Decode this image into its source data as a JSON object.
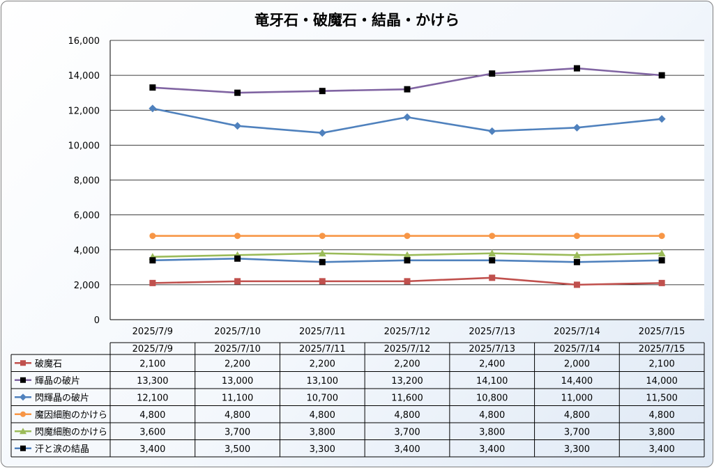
{
  "chart_data": {
    "type": "line",
    "title": "竜牙石・破魔石・結晶・かけら",
    "categories": [
      "2025/7/9",
      "2025/7/10",
      "2025/7/11",
      "2025/7/12",
      "2025/7/13",
      "2025/7/14",
      "2025/7/15"
    ],
    "ylim": [
      0,
      16000
    ],
    "yticks": [
      0,
      2000,
      4000,
      6000,
      8000,
      10000,
      12000,
      14000,
      16000
    ],
    "ytick_labels": [
      "0",
      "2,000",
      "4,000",
      "6,000",
      "8,000",
      "10,000",
      "12,000",
      "14,000",
      "16,000"
    ],
    "grid": true,
    "legend": "data-table",
    "series": [
      {
        "name": "破魔石",
        "color": "#c0504d",
        "marker": "square",
        "values": [
          2100,
          2200,
          2200,
          2200,
          2400,
          2000,
          2100
        ],
        "labels": [
          "2,100",
          "2,200",
          "2,200",
          "2,200",
          "2,400",
          "2,000",
          "2,100"
        ]
      },
      {
        "name": "輝晶の破片",
        "color": "#8064a2",
        "marker": "black-square",
        "values": [
          13300,
          13000,
          13100,
          13200,
          14100,
          14400,
          14000
        ],
        "labels": [
          "13,300",
          "13,000",
          "13,100",
          "13,200",
          "14,100",
          "14,400",
          "14,000"
        ]
      },
      {
        "name": "閃輝晶の破片",
        "color": "#4f81bd",
        "marker": "diamond",
        "values": [
          12100,
          11100,
          10700,
          11600,
          10800,
          11000,
          11500
        ],
        "labels": [
          "12,100",
          "11,100",
          "10,700",
          "11,600",
          "10,800",
          "11,000",
          "11,500"
        ]
      },
      {
        "name": "魔因細胞のかけら",
        "color": "#f79646",
        "marker": "circle",
        "values": [
          4800,
          4800,
          4800,
          4800,
          4800,
          4800,
          4800
        ],
        "labels": [
          "4,800",
          "4,800",
          "4,800",
          "4,800",
          "4,800",
          "4,800",
          "4,800"
        ]
      },
      {
        "name": "閃魔細胞のかけら",
        "color": "#9bbb59",
        "marker": "triangle",
        "values": [
          3600,
          3700,
          3800,
          3700,
          3800,
          3700,
          3800
        ],
        "labels": [
          "3,600",
          "3,700",
          "3,800",
          "3,700",
          "3,800",
          "3,700",
          "3,800"
        ]
      },
      {
        "name": "汗と涙の結晶",
        "color": "#4f81bd",
        "marker": "black-square",
        "values": [
          3400,
          3500,
          3300,
          3400,
          3400,
          3300,
          3400
        ],
        "labels": [
          "3,400",
          "3,500",
          "3,300",
          "3,400",
          "3,400",
          "3,300",
          "3,400"
        ]
      }
    ]
  }
}
